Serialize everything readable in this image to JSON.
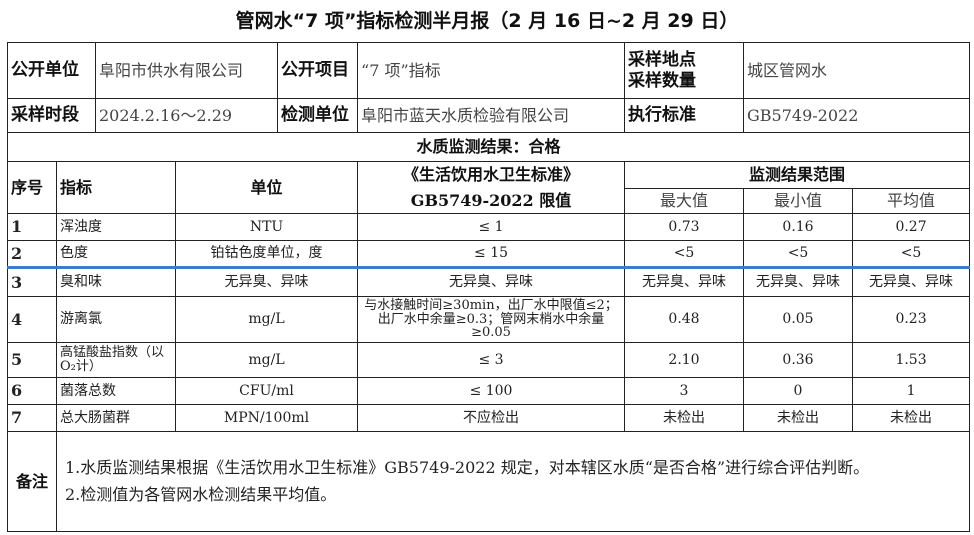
{
  "title": "管网水“7 项”指标检测半月报（2 月 16 日~2 月 29 日）",
  "info": {
    "publisher_label": "公开单位",
    "publisher": "阜阳市供水有限公司",
    "item_label": "公开项目",
    "item": "“7 项”指标",
    "site_label_1": "采样地点",
    "site_label_2": "采样数量",
    "site": "城区管网水",
    "period_label": "采样时段",
    "period": "2024.2.16～2.29",
    "lab_label": "检测单位",
    "lab": "阜阳市蓝天水质检验有限公司",
    "standard_label": "执行标准",
    "standard": "GB5749-2022"
  },
  "result_line": "水质监测结果：合格",
  "headers": {
    "no": "序号",
    "indicator": "指标",
    "unit": "单位",
    "limit_1": "《生活饮用水卫生标准》",
    "limit_2": "GB5749-2022 限值",
    "range": "监测结果范围",
    "max": "最大值",
    "min": "最小值",
    "avg": "平均值"
  },
  "rows": [
    {
      "no": "1",
      "indicator": "浑浊度",
      "unit": "NTU",
      "limit": "≤  1",
      "max": "0.73",
      "min": "0.16",
      "avg": "0.27"
    },
    {
      "no": "2",
      "indicator": "色度",
      "unit": "铂钴色度单位，度",
      "limit": "≤ 15",
      "max": "<5",
      "min": "<5",
      "avg": "<5"
    },
    {
      "no": "3",
      "indicator": "臭和味",
      "unit": "无异臭、异味",
      "limit": "无异臭、异味",
      "max": "无异臭、异味",
      "min": "无异臭、异味",
      "avg": "无异臭、异味"
    },
    {
      "no": "4",
      "indicator": "游离氯",
      "unit": "mg/L",
      "limit": "与水接触时间≥30min，出厂水中限值≤2；出厂水中余量≥0.3；管网末梢水中余量≥0.05",
      "max": "0.48",
      "min": "0.05",
      "avg": "0.23"
    },
    {
      "no": "5",
      "indicator": "高锰酸盐指数（以O₂计）",
      "unit": "mg/L",
      "limit": "≤ 3",
      "max": "2.10",
      "min": "0.36",
      "avg": "1.53"
    },
    {
      "no": "6",
      "indicator": "菌落总数",
      "unit": "CFU/ml",
      "limit": "≤ 100",
      "max": "3",
      "min": "0",
      "avg": "1"
    },
    {
      "no": "7",
      "indicator": "总大肠菌群",
      "unit": "MPN/100ml",
      "limit": "不应检出",
      "max": "未检出",
      "min": "未检出",
      "avg": "未检出"
    }
  ],
  "notes": {
    "label": "备注",
    "line1": "1.水质监测结果根据《生活饮用水卫生标准》GB5749-2022 规定，对本辖区水质“是否合格”进行综合评估判断。",
    "line2": "2.检测值为各管网水检测结果平均值。"
  },
  "colors": {
    "separator": "#3a7bd5"
  }
}
